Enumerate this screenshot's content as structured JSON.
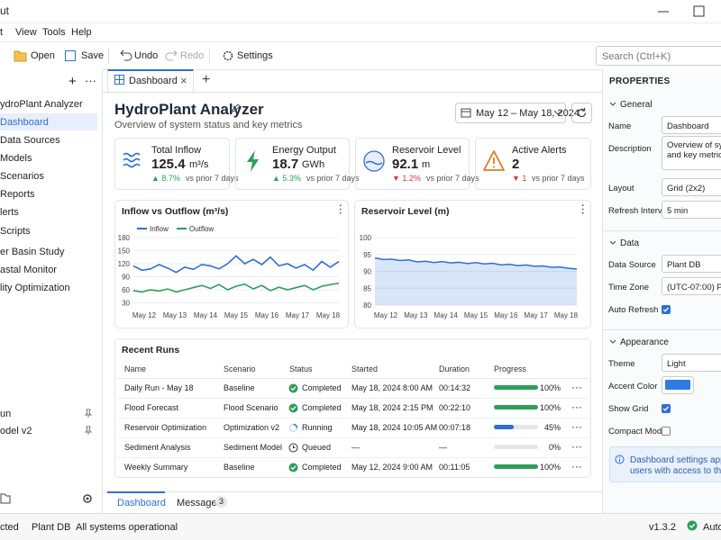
{
  "window": {
    "title": "ut",
    "menu": [
      "t",
      "View",
      "Tools",
      "Help"
    ]
  },
  "toolbar": {
    "buttons": [
      "Open",
      "Save",
      "Undo",
      "Redo",
      "Settings"
    ],
    "search_placeholder": "Search (Ctrl+K)"
  },
  "sidebar": {
    "items": [
      "ydroPlant Analyzer",
      "Dashboard",
      "Data Sources",
      "Models",
      "Scenarios",
      "Reports",
      "lerts",
      "Scripts",
      "er Basin Study",
      "astal Monitor",
      "lity Optimization"
    ],
    "pinned": [
      "un",
      "odel v2"
    ]
  },
  "tabs": [
    "Dashboard"
  ],
  "dashboard": {
    "title": "HydroPlant Analyzer",
    "subtitle": "Overview of system status and key metrics",
    "date_range": "May 12 – May 18, 2024",
    "kpis": [
      {
        "label": "Total Inflow",
        "value": "125.4",
        "unit": "m³/s",
        "delta": "▲ 8.7%",
        "comparison": "vs prior 7 days"
      },
      {
        "label": "Energy Output",
        "value": "18.7",
        "unit": "GWh",
        "delta": "▲ 5.3%",
        "comparison": "vs prior 7 days"
      },
      {
        "label": "Reservoir Level",
        "value": "92.1",
        "unit": "m",
        "delta": "▼ 1.2%",
        "comparison": "vs prior 7 days"
      },
      {
        "label": "Active Alerts",
        "value": "2",
        "unit": "",
        "delta": "▼ 1",
        "comparison": "vs prior 7 days"
      }
    ],
    "charts": [
      {
        "type": "line",
        "title": "Inflow vs Outflow (m³/s)",
        "categories": [
          "May 12",
          "May 13",
          "May 14",
          "May 15",
          "May 16",
          "May 17",
          "May 18"
        ],
        "ylim": [
          30,
          180
        ],
        "yticks": [
          30,
          60,
          90,
          120,
          150,
          180
        ],
        "legend": "top-left",
        "series": [
          {
            "name": "Inflow",
            "color": "#2f6fd6",
            "values": [
              115,
              105,
              108,
              118,
              110,
              100,
              112,
              107,
              118,
              115,
              108,
              120,
              138,
              120,
              130,
              118,
              135,
              115,
              120,
              110,
              118,
              105,
              125,
              112,
              125
            ]
          },
          {
            "name": "Outflow",
            "color": "#2e9e5b",
            "values": [
              58,
              55,
              60,
              57,
              62,
              55,
              60,
              65,
              70,
              63,
              72,
              60,
              68,
              73,
              62,
              70,
              58,
              66,
              60,
              65,
              70,
              60,
              68,
              72,
              75
            ]
          }
        ]
      },
      {
        "type": "area",
        "title": "Reservoir Level (m)",
        "categories": [
          "May 12",
          "May 13",
          "May 14",
          "May 15",
          "May 16",
          "May 17",
          "May 18"
        ],
        "ylim": [
          80,
          100
        ],
        "yticks": [
          80,
          85,
          90,
          95,
          100
        ],
        "series": [
          {
            "name": "Reservoir Level",
            "color": "#2f6fd6",
            "values": [
              94,
              93.5,
              93.6,
              93.2,
              93.4,
              92.8,
              93.0,
              92.6,
              92.9,
              92.5,
              92.7,
              92.3,
              92.6,
              92.2,
              92.4,
              91.9,
              92.1,
              91.7,
              91.9,
              91.5,
              91.6,
              91.2,
              91.3,
              90.9,
              90.7
            ]
          }
        ]
      }
    ],
    "runs": {
      "title": "Recent Runs",
      "columns": [
        "Name",
        "Scenario",
        "Status",
        "Started",
        "Duration",
        "Progress"
      ],
      "rows": [
        {
          "name": "Daily Run - May 18",
          "scenario": "Baseline",
          "status": "Completed",
          "started": "May 18, 2024 8:00 AM",
          "duration": "00:14:32",
          "progress": 100,
          "progress_label": "100%"
        },
        {
          "name": "Flood Forecast",
          "scenario": "Flood Scenario",
          "status": "Completed",
          "started": "May 18, 2024 2:15 PM",
          "duration": "00:22:10",
          "progress": 100,
          "progress_label": "100%"
        },
        {
          "name": "Reservoir Optimization",
          "scenario": "Optimization v2",
          "status": "Running",
          "started": "May 18, 2024 10:05 AM",
          "duration": "00:07:18",
          "progress": 45,
          "progress_label": "45%"
        },
        {
          "name": "Sediment Analysis",
          "scenario": "Sediment Model",
          "status": "Queued",
          "started": "—",
          "duration": "—",
          "progress": 0,
          "progress_label": "0%"
        },
        {
          "name": "Weekly Summary",
          "scenario": "Baseline",
          "status": "Completed",
          "started": "May 12, 2024 9:00 AM",
          "duration": "00:11:05",
          "progress": 100,
          "progress_label": "100%"
        }
      ]
    }
  },
  "bottom_tabs": {
    "tabs": [
      "Dashboard",
      "Messages"
    ],
    "badge": "3"
  },
  "properties": {
    "title": "PROPERTIES",
    "sections": [
      {
        "title": "General",
        "fields": [
          {
            "label": "Name",
            "value": "Dashboard",
            "kind": "input"
          },
          {
            "label": "Description",
            "value": "Overview of syste",
            "value2": "and key metrics",
            "kind": "textarea"
          },
          {
            "label": "Layout",
            "value": "Grid (2x2)",
            "kind": "input"
          },
          {
            "label": "Refresh Interval",
            "value": "5 min",
            "kind": "input"
          }
        ]
      },
      {
        "title": "Data",
        "fields": [
          {
            "label": "Data Source",
            "value": "Plant DB",
            "kind": "input"
          },
          {
            "label": "Time Zone",
            "value": "(UTC-07:00) Pacifi",
            "kind": "input"
          },
          {
            "label": "Auto Refresh",
            "checked": true,
            "kind": "checkbox"
          }
        ]
      },
      {
        "title": "Appearance",
        "fields": [
          {
            "label": "Theme",
            "value": "Light",
            "kind": "input"
          },
          {
            "label": "Accent Color",
            "color": "#2f7ce0",
            "kind": "color"
          },
          {
            "label": "Show Grid",
            "checked": true,
            "kind": "checkbox"
          },
          {
            "label": "Compact Mode",
            "checked": false,
            "kind": "checkbox"
          }
        ]
      }
    ],
    "info": [
      "Dashboard settings apply to",
      "users with access to this pro"
    ]
  },
  "status_bar": {
    "left": [
      "cted",
      "Plant DB",
      "All systems operational"
    ],
    "version": "v1.3.2",
    "right": "Auto-"
  }
}
